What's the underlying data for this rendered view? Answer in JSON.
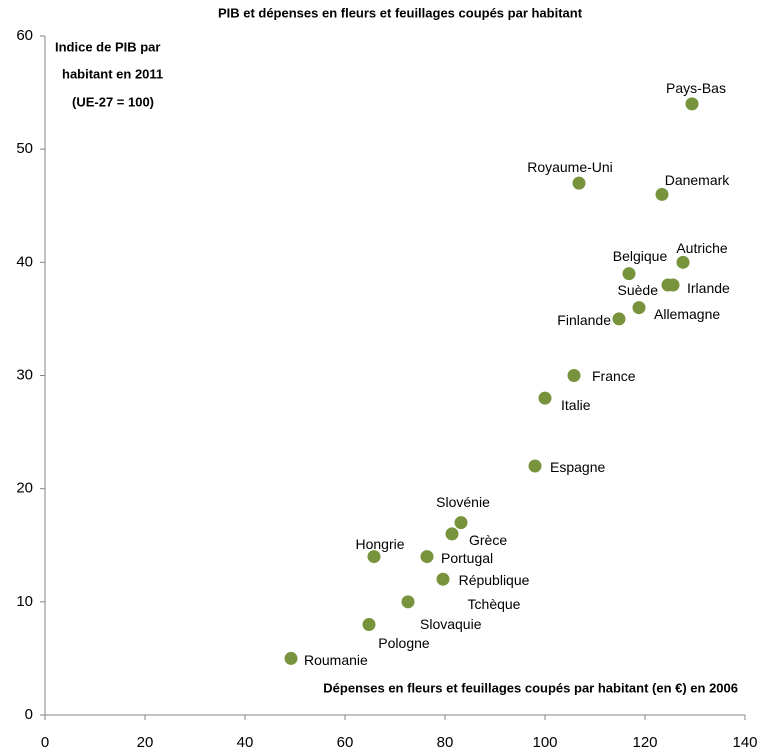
{
  "chart_data": {
    "type": "scatter",
    "title": "PIB et dépenses en fleurs et feuillages coupés par habitant",
    "y_label": [
      "Indice de PIB par",
      "habitant en 2011",
      "(UE-27 = 100)"
    ],
    "x_label": "Dépenses en fleurs et feuillages coupés par habitant (en €) en 2006",
    "x": [
      49.2,
      64.8,
      72.6,
      65.8,
      76.4,
      79.6,
      81.4,
      83.2,
      98,
      100,
      105.8,
      114.8,
      118.8,
      124.6,
      125.6,
      116.8,
      127.6,
      123.4,
      106.8,
      129.4
    ],
    "series": [
      {
        "color": "#77933c",
        "values": [
          5,
          8,
          10,
          14,
          14,
          12,
          16,
          17,
          22,
          28,
          30,
          35,
          36,
          38,
          38,
          39,
          40,
          46,
          47,
          54
        ]
      }
    ],
    "point_labels": [
      "Roumanie",
      "Pologne",
      "Slovaquie",
      "Hongrie",
      "Portugal",
      "République Tchèque",
      "Grèce",
      "Slovénie",
      "Espagne",
      "Italie",
      "France",
      "Finlande",
      "Allemagne",
      "Suède",
      "Irlande",
      "Belgique",
      "Autriche",
      "Danemark",
      "Royaume-Uni",
      "Pays-Bas"
    ],
    "xlim": [
      0,
      140
    ],
    "xticks": [
      0,
      20,
      40,
      60,
      80,
      100,
      120,
      140
    ],
    "ylim": [
      0,
      60
    ],
    "yticks": [
      0,
      10,
      20,
      30,
      40,
      50,
      60
    ],
    "grid": false
  }
}
